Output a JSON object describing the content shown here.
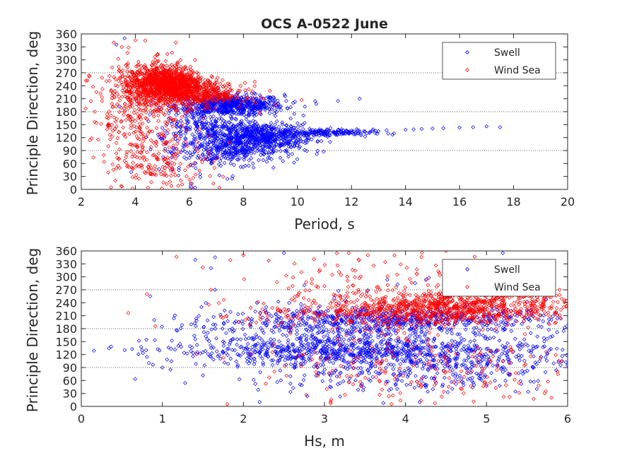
{
  "figure": {
    "title": "OCS A-0522 June"
  },
  "chart_data": [
    {
      "type": "scatter",
      "xlabel": "Period, s",
      "ylabel": "Principle Direction, deg",
      "xlim": [
        2,
        20
      ],
      "ylim": [
        0,
        360
      ],
      "xticks": [
        "2",
        "4",
        "6",
        "8",
        "10",
        "12",
        "14",
        "16",
        "18",
        "20"
      ],
      "yticks": [
        "0",
        "30",
        "60",
        "90",
        "120",
        "150",
        "180",
        "210",
        "240",
        "270",
        "300",
        "330",
        "360"
      ],
      "ref_lines": [
        90,
        180,
        270
      ],
      "legend_position": "top-right",
      "series": [
        {
          "name": "Swell",
          "color": "#0000ff",
          "marker": "diamond",
          "clusters": [
            {
              "x": 7.5,
              "y": 195,
              "sx": 1.0,
              "sy": 12,
              "n": 650
            },
            {
              "x": 8.6,
              "y": 125,
              "sx": 1.0,
              "sy": 14,
              "n": 500
            },
            {
              "x": 8.0,
              "y": 95,
              "sx": 1.0,
              "sy": 18,
              "n": 300
            },
            {
              "x": 11.0,
              "y": 131,
              "sx": 0.9,
              "sy": 4,
              "n": 150
            },
            {
              "x": 6.5,
              "y": 100,
              "sx": 0.8,
              "sy": 40,
              "n": 150
            },
            {
              "x": 6.8,
              "y": 150,
              "sx": 1.0,
              "sy": 20,
              "n": 150
            }
          ],
          "tail": [
            {
              "x": 12.0,
              "y": 132
            },
            {
              "x": 12.5,
              "y": 134
            },
            {
              "x": 13.0,
              "y": 135
            },
            {
              "x": 13.3,
              "y": 137
            },
            {
              "x": 14.0,
              "y": 138
            },
            {
              "x": 14.3,
              "y": 139
            },
            {
              "x": 14.6,
              "y": 140
            },
            {
              "x": 15.0,
              "y": 141
            },
            {
              "x": 15.4,
              "y": 142
            },
            {
              "x": 16.0,
              "y": 143
            },
            {
              "x": 16.5,
              "y": 144
            },
            {
              "x": 17.0,
              "y": 146
            },
            {
              "x": 17.5,
              "y": 144
            },
            {
              "x": 12.3,
              "y": 210
            },
            {
              "x": 11.5,
              "y": 205
            },
            {
              "x": 10.7,
              "y": 198
            },
            {
              "x": 3.3,
              "y": 335
            },
            {
              "x": 3.6,
              "y": 350
            }
          ]
        },
        {
          "name": "Wind Sea",
          "color": "#ff0000",
          "marker": "diamond",
          "clusters": [
            {
              "x": 5.1,
              "y": 245,
              "sx": 0.7,
              "sy": 20,
              "n": 1100
            },
            {
              "x": 6.3,
              "y": 220,
              "sx": 0.9,
              "sy": 14,
              "n": 400
            },
            {
              "x": 4.2,
              "y": 180,
              "sx": 0.9,
              "sy": 60,
              "n": 350
            },
            {
              "x": 5.0,
              "y": 60,
              "sx": 1.0,
              "sy": 35,
              "n": 150
            }
          ],
          "tail": [
            {
              "x": 2.5,
              "y": 180
            },
            {
              "x": 3.0,
              "y": 100
            },
            {
              "x": 3.1,
              "y": 5
            },
            {
              "x": 3.2,
              "y": 340
            },
            {
              "x": 3.5,
              "y": 330
            },
            {
              "x": 4.0,
              "y": 345
            },
            {
              "x": 5.5,
              "y": 340
            },
            {
              "x": 7.7,
              "y": 210
            },
            {
              "x": 8.1,
              "y": 205
            }
          ]
        }
      ]
    },
    {
      "type": "scatter",
      "xlabel": "Hs, m",
      "ylabel": "Principle Direction, deg",
      "xlim": [
        0,
        6
      ],
      "ylim": [
        0,
        360
      ],
      "xticks": [
        "0",
        "1",
        "2",
        "3",
        "4",
        "5",
        "6"
      ],
      "yticks": [
        "0",
        "30",
        "60",
        "90",
        "120",
        "150",
        "180",
        "210",
        "240",
        "270",
        "300",
        "330",
        "360"
      ],
      "ref_lines": [
        90,
        180,
        270
      ],
      "legend_position": "top-right",
      "series": [
        {
          "name": "Swell",
          "color": "#0000ff",
          "marker": "diamond",
          "clusters": [
            {
              "x": 3.8,
              "y": 200,
              "sx": 1.1,
              "sy": 14,
              "n": 550
            },
            {
              "x": 3.4,
              "y": 128,
              "sx": 1.2,
              "sy": 16,
              "n": 650
            },
            {
              "x": 4.1,
              "y": 90,
              "sx": 1.1,
              "sy": 28,
              "n": 400
            },
            {
              "x": 2.8,
              "y": 165,
              "sx": 0.8,
              "sy": 25,
              "n": 150
            },
            {
              "x": 4.0,
              "y": 180,
              "sx": 1.1,
              "sy": 50,
              "n": 200
            }
          ],
          "tail": [
            {
              "x": 0.75,
              "y": 130
            },
            {
              "x": 0.8,
              "y": 130
            },
            {
              "x": 0.85,
              "y": 255
            },
            {
              "x": 0.9,
              "y": 200
            },
            {
              "x": 1.0,
              "y": 90
            },
            {
              "x": 1.1,
              "y": 85
            },
            {
              "x": 1.6,
              "y": 320
            },
            {
              "x": 1.65,
              "y": 345
            },
            {
              "x": 1.65,
              "y": 270
            },
            {
              "x": 2.2,
              "y": 10
            },
            {
              "x": 2.5,
              "y": 355
            },
            {
              "x": 5.2,
              "y": 355
            }
          ]
        },
        {
          "name": "Wind Sea",
          "color": "#ff0000",
          "marker": "diamond",
          "clusters": [
            {
              "x": 4.6,
              "y": 235,
              "sx": 0.8,
              "sy": 18,
              "n": 750
            },
            {
              "x": 3.9,
              "y": 210,
              "sx": 0.9,
              "sy": 16,
              "n": 300
            },
            {
              "x": 4.3,
              "y": 90,
              "sx": 1.1,
              "sy": 60,
              "n": 250
            },
            {
              "x": 3.6,
              "y": 300,
              "sx": 1.0,
              "sy": 30,
              "n": 100
            }
          ],
          "tail": [
            {
              "x": 1.6,
              "y": 270
            },
            {
              "x": 1.8,
              "y": 5
            },
            {
              "x": 2.0,
              "y": 350
            },
            {
              "x": 3.3,
              "y": 355
            },
            {
              "x": 4.5,
              "y": 360
            },
            {
              "x": 5.9,
              "y": 270
            },
            {
              "x": 5.95,
              "y": 230
            },
            {
              "x": 5.8,
              "y": 20
            }
          ]
        }
      ]
    }
  ]
}
